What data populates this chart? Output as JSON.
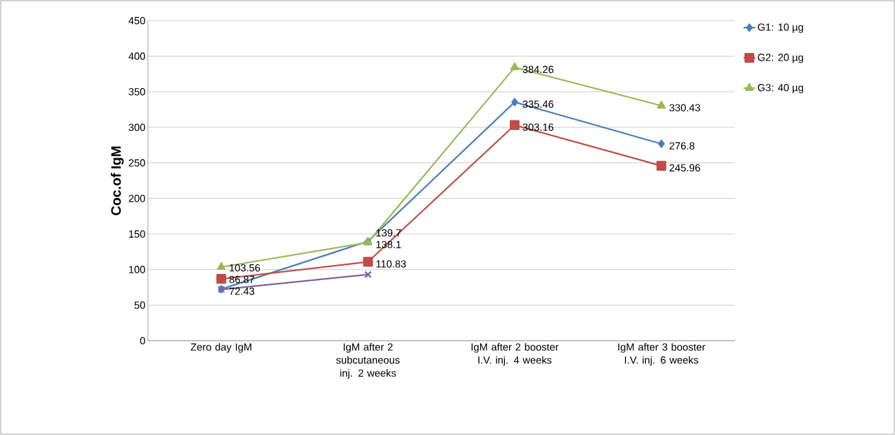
{
  "chart_data": {
    "type": "line",
    "ylabel": "Coc.of IgM",
    "categories": [
      "Zero day IgM",
      "IgM after 2 subcutaneous inj. 2 weeks",
      "IgM after 2 booster I.V. inj. 4 weeks",
      "IgM after 3 booster I.V. inj. 6 weeks"
    ],
    "series": [
      {
        "name": "G1: 10 µg",
        "color": "#4a7ebb",
        "marker": "diamond",
        "values": [
          72.43,
          139.7,
          335.46,
          276.8
        ],
        "value_labels": [
          "72.43",
          "139.7",
          "335.46",
          "276.8"
        ]
      },
      {
        "name": "G2: 20 µg",
        "color": "#be4b48",
        "marker": "square",
        "values": [
          86.87,
          110.83,
          303.16,
          245.96
        ],
        "value_labels": [
          "86.87",
          "110.83",
          "303.16",
          "245.96"
        ]
      },
      {
        "name": "G3: 40 µg",
        "color": "#98b954",
        "marker": "triangle",
        "values": [
          103.56,
          138.1,
          384.26,
          330.43
        ],
        "value_labels": [
          "103.56",
          "138.1",
          "384.26",
          "330.43"
        ]
      },
      {
        "color": "#7d60a0",
        "marker": "cross",
        "values": [
          72,
          93,
          null,
          null
        ]
      }
    ],
    "ylim": [
      0,
      450
    ],
    "yticks": [
      0,
      50,
      100,
      150,
      200,
      250,
      300,
      350,
      400,
      450
    ],
    "grid": "y",
    "legend": "top right"
  }
}
